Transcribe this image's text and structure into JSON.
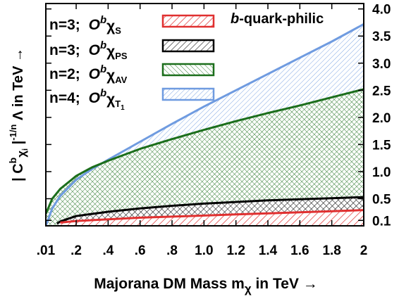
{
  "chart_data": {
    "type": "area",
    "xlabel": "Majorana DM Mass m",
    "xlabel_sub": "χ",
    "xlabel_suffix": " in TeV →",
    "ylabel": "| C",
    "ylabel_sup": "b",
    "ylabel_sub_main": "χ",
    "ylabel_sub_sub": "i",
    "ylabel_mid": " |",
    "ylabel_exp": "-1/n",
    "ylabel_suffix": " Λ in  TeV →",
    "xlim": [
      0.01,
      2.0
    ],
    "ylim": [
      0.0,
      4.1
    ],
    "x_ticks": [
      0.01,
      0.2,
      0.4,
      0.6,
      0.8,
      1.0,
      1.2,
      1.4,
      1.6,
      1.8,
      2.0
    ],
    "x_tick_labels": [
      ".01",
      ".2",
      ".4",
      ".6",
      ".8",
      "1.0",
      "1.2",
      "1.4",
      "1.6",
      "1.8",
      "2"
    ],
    "y_ticks": [
      0.1,
      0.5,
      1.0,
      1.5,
      2.0,
      2.5,
      3.0,
      3.5,
      4.0
    ],
    "y_tick_labels": [
      "0.1",
      "0.5",
      "1.0",
      "1.5",
      "2.0",
      "2.5",
      "3.0",
      "3.5",
      "4.0"
    ],
    "annotation": {
      "prefix": "b",
      "suffix": "-quark-philic"
    },
    "series": [
      {
        "name": "S",
        "legend": {
          "n": "n=3;",
          "op": "O",
          "sup": "b",
          "chi": "χ",
          "sub": "S",
          "subsub": ""
        },
        "color": "#e03030",
        "x": [
          0.1,
          0.2,
          0.4,
          0.6,
          0.8,
          1.0,
          1.2,
          1.4,
          1.6,
          1.8,
          2.0
        ],
        "y": [
          0.06,
          0.09,
          0.12,
          0.15,
          0.17,
          0.19,
          0.21,
          0.23,
          0.25,
          0.27,
          0.29
        ]
      },
      {
        "name": "PS",
        "legend": {
          "n": "n=3;",
          "op": "O",
          "sup": "b",
          "chi": "χ",
          "sub": "PS",
          "subsub": ""
        },
        "color": "#000000",
        "x": [
          0.08,
          0.1,
          0.2,
          0.4,
          0.6,
          0.8,
          1.0,
          1.2,
          1.4,
          1.6,
          1.8,
          2.0
        ],
        "y": [
          0.04,
          0.08,
          0.18,
          0.26,
          0.32,
          0.37,
          0.41,
          0.44,
          0.47,
          0.49,
          0.51,
          0.53
        ]
      },
      {
        "name": "AV",
        "legend": {
          "n": "n=2;",
          "op": "O",
          "sup": "b",
          "chi": "χ",
          "sub": "AV",
          "subsub": ""
        },
        "color": "#1b6e1b",
        "x": [
          0.01,
          0.05,
          0.1,
          0.2,
          0.3,
          0.4,
          0.6,
          0.8,
          1.0,
          1.2,
          1.4,
          1.6,
          1.8,
          2.0
        ],
        "y": [
          0.22,
          0.5,
          0.68,
          0.92,
          1.08,
          1.2,
          1.42,
          1.6,
          1.77,
          1.93,
          2.08,
          2.22,
          2.37,
          2.52
        ]
      },
      {
        "name": "T1",
        "legend": {
          "n": "n=4;",
          "op": "O",
          "sup": "b",
          "chi": "χ",
          "sub": "T",
          "subsub": "1"
        },
        "color": "#6f9be0",
        "x": [
          0.01,
          0.05,
          0.1,
          0.2,
          0.3,
          0.4,
          0.6,
          0.8,
          1.0,
          1.2,
          1.4,
          1.6,
          1.8,
          2.0
        ],
        "y": [
          0.0,
          0.32,
          0.55,
          0.85,
          1.05,
          1.22,
          1.55,
          1.88,
          2.2,
          2.5,
          2.8,
          3.1,
          3.4,
          3.72
        ]
      }
    ]
  }
}
